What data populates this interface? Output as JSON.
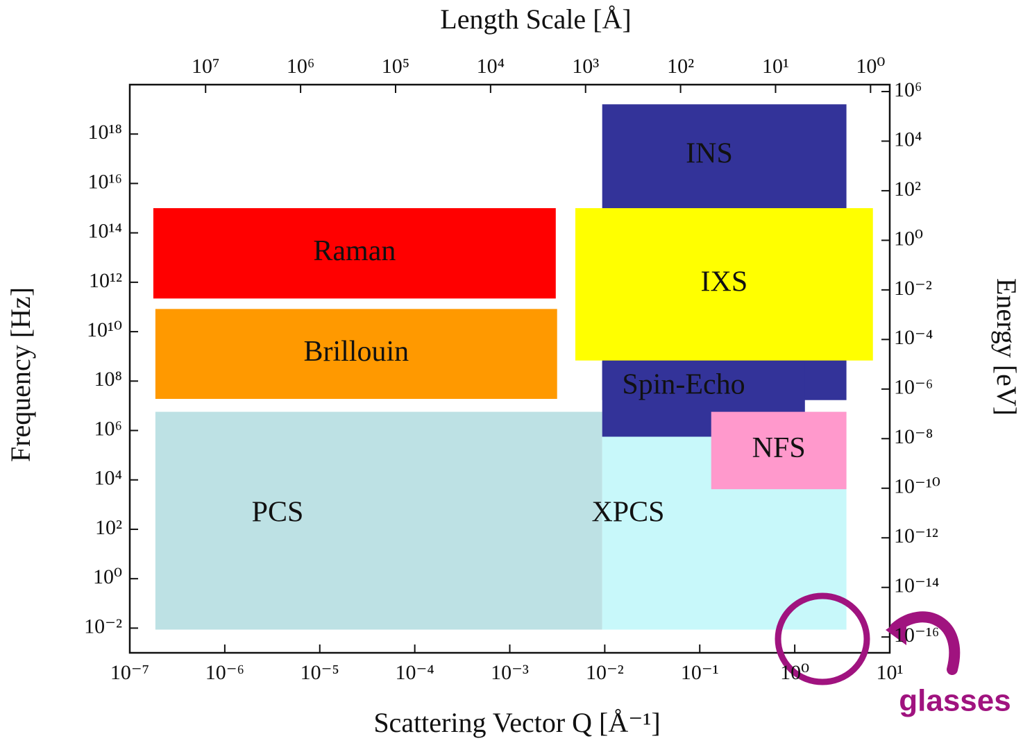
{
  "chart_data": {
    "type": "region",
    "x_label": "Scattering Vector Q [Å⁻¹]",
    "x2_label": "Length Scale [Å]",
    "y_label": "Frequency [Hz]",
    "y2_label": "Energy [eV]",
    "annotation": "glasses",
    "xscale": "log",
    "yscale": "log",
    "xlim": [
      1e-07,
      10
    ],
    "xticks": [
      {
        "value": 1e-07,
        "label": "10⁻⁷"
      },
      {
        "value": 1e-06,
        "label": "10⁻⁶"
      },
      {
        "value": 1e-05,
        "label": "10⁻⁵"
      },
      {
        "value": 0.0001,
        "label": "10⁻⁴"
      },
      {
        "value": 0.001,
        "label": "10⁻³"
      },
      {
        "value": 0.01,
        "label": "10⁻²"
      },
      {
        "value": 0.1,
        "label": "10⁻¹"
      },
      {
        "value": 1,
        "label": "10⁰"
      },
      {
        "value": 10,
        "label": "10¹"
      }
    ],
    "x2lim": [
      62800000,
      0.628
    ],
    "x2ticks": [
      {
        "value": 10000000,
        "label": "10⁷"
      },
      {
        "value": 1000000,
        "label": "10⁶"
      },
      {
        "value": 100000,
        "label": "10⁵"
      },
      {
        "value": 10000,
        "label": "10⁴"
      },
      {
        "value": 1000,
        "label": "10³"
      },
      {
        "value": 100,
        "label": "10²"
      },
      {
        "value": 10,
        "label": "10¹"
      },
      {
        "value": 1,
        "label": "10⁰"
      }
    ],
    "ylim": [
      0.001,
      1e+20
    ],
    "yticks": [
      {
        "value": 0.01,
        "label": "10⁻²"
      },
      {
        "value": 1,
        "label": "10⁰"
      },
      {
        "value": 100,
        "label": "10²"
      },
      {
        "value": 10000,
        "label": "10⁴"
      },
      {
        "value": 1000000,
        "label": "10⁶"
      },
      {
        "value": 100000000,
        "label": "10⁸"
      },
      {
        "value": 10000000000.0,
        "label": "10¹⁰"
      },
      {
        "value": 1000000000000.0,
        "label": "10¹²"
      },
      {
        "value": 100000000000000.0,
        "label": "10¹⁴"
      },
      {
        "value": 1e+16,
        "label": "10¹⁶"
      },
      {
        "value": 1e+18,
        "label": "10¹⁸"
      }
    ],
    "y2lim": [
      2.3e-17,
      1900000
    ],
    "y2ticks": [
      {
        "value": 1e-16,
        "label": "10⁻¹⁶"
      },
      {
        "value": 1e-14,
        "label": "10⁻¹⁴"
      },
      {
        "value": 1e-12,
        "label": "10⁻¹²"
      },
      {
        "value": 1e-10,
        "label": "10⁻¹⁰"
      },
      {
        "value": 1e-08,
        "label": "10⁻⁸"
      },
      {
        "value": 1e-06,
        "label": "10⁻⁶"
      },
      {
        "value": 0.0001,
        "label": "10⁻⁴"
      },
      {
        "value": 0.01,
        "label": "10⁻²"
      },
      {
        "value": 1,
        "label": "10⁰"
      },
      {
        "value": 100,
        "label": "10²"
      },
      {
        "value": 10000,
        "label": "10⁴"
      },
      {
        "value": 1000000,
        "label": "10⁶"
      }
    ],
    "regions": [
      {
        "name": "PCS",
        "color": "#bde1e4",
        "x": [
          1.86e-07,
          0.0094
        ],
        "y": [
          0.0087,
          5700000
        ]
      },
      {
        "name": "XPCS",
        "color": "#c8f8fa",
        "x": [
          0.0094,
          3.5
        ],
        "y": [
          0.0087,
          5700000
        ]
      },
      {
        "name": "INS",
        "color": "#333399",
        "x": [
          0.0094,
          3.5
        ],
        "y": [
          17000000,
          1.6e+19
        ]
      },
      {
        "name": "Spin-Echo",
        "color": "#333399",
        "x": [
          0.0094,
          1.28
        ],
        "y": [
          560000,
          630000000
        ]
      },
      {
        "name": "NFS",
        "color": "#ff99cc",
        "x": [
          0.132,
          3.5
        ],
        "y": [
          4200,
          5700000
        ]
      },
      {
        "name": "Raman",
        "color": "#ff0000",
        "x": [
          1.77e-07,
          0.00305
        ],
        "y": [
          220000000000,
          1000000000000000.0
        ]
      },
      {
        "name": "Brillouin",
        "color": "#ff9900",
        "x": [
          1.86e-07,
          0.00315
        ],
        "y": [
          19000000,
          83000000000
        ]
      },
      {
        "name": "IXS",
        "color": "#ffff00",
        "x": [
          0.0049,
          6.65
        ],
        "y": [
          680000000,
          1000000000000000.0
        ]
      }
    ]
  }
}
